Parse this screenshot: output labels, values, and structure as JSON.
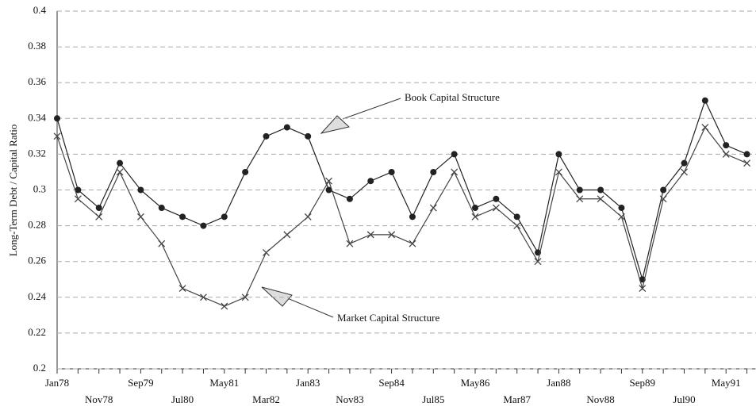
{
  "chart_data": {
    "type": "line",
    "y_label": "Long-Term Debt / Capital Ratio",
    "categories": [
      "Jan78",
      null,
      "Nov78",
      null,
      "Sep79",
      null,
      "Jul80",
      null,
      "May81",
      null,
      "Mar82",
      null,
      "Jan83",
      null,
      "Nov83",
      null,
      "Sep84",
      null,
      "Jul85",
      null,
      "May86",
      null,
      "Mar87",
      null,
      "Jan88",
      null,
      "Nov88",
      null,
      "Sep89",
      null,
      "Jul90",
      null,
      "May91",
      null
    ],
    "series": [
      {
        "name": "Book Capital Structure",
        "color": "#222222",
        "marker": "circle",
        "values": [
          0.34,
          0.3,
          0.29,
          0.315,
          0.3,
          0.29,
          0.285,
          0.28,
          0.285,
          0.31,
          0.33,
          0.335,
          0.33,
          0.3,
          0.295,
          0.305,
          0.31,
          0.285,
          0.31,
          0.32,
          0.29,
          0.295,
          0.285,
          0.265,
          0.32,
          0.3,
          0.3,
          0.29,
          0.25,
          0.3,
          0.315,
          0.35,
          0.325,
          0.32
        ]
      },
      {
        "name": "Market Capital Structure",
        "color": "#444444",
        "marker": "x",
        "values": [
          0.33,
          0.295,
          0.285,
          0.31,
          0.285,
          0.27,
          0.245,
          0.24,
          0.235,
          0.24,
          0.265,
          0.275,
          0.285,
          0.305,
          0.27,
          0.275,
          0.275,
          0.27,
          0.29,
          0.31,
          0.285,
          0.29,
          0.28,
          0.26,
          0.31,
          0.295,
          0.295,
          0.285,
          0.245,
          0.295,
          0.31,
          0.335,
          0.32,
          0.315
        ]
      }
    ],
    "ylim": [
      0.2,
      0.4
    ],
    "yticks": [
      0.2,
      0.22,
      0.24,
      0.26,
      0.28,
      0.3,
      0.32,
      0.34,
      0.36,
      0.38,
      0.4
    ],
    "grid": true
  }
}
